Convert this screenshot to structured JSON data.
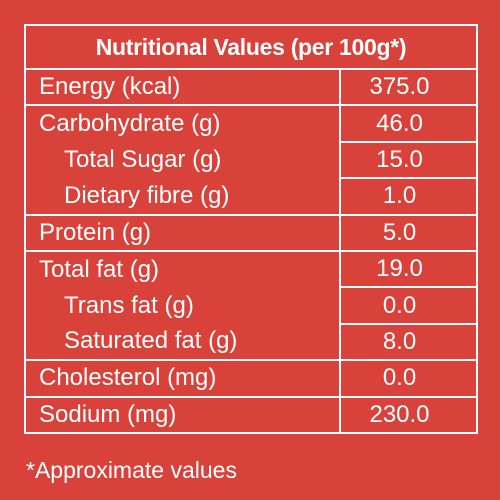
{
  "table": {
    "title": "Nutritional Values (per 100g*)",
    "rows": [
      {
        "label": "Energy (kcal)",
        "value": "375.0",
        "indent": false
      },
      {
        "label": "Carbohydrate (g)",
        "value": "46.0",
        "indent": false
      },
      {
        "label": "Total Sugar (g)",
        "value": "15.0",
        "indent": true
      },
      {
        "label": "Dietary fibre (g)",
        "value": "1.0",
        "indent": true
      },
      {
        "label": "Protein (g)",
        "value": "5.0",
        "indent": false
      },
      {
        "label": "Total fat (g)",
        "value": "19.0",
        "indent": false
      },
      {
        "label": "Trans fat (g)",
        "value": "0.0",
        "indent": true
      },
      {
        "label": "Saturated fat (g)",
        "value": "8.0",
        "indent": true
      },
      {
        "label": "Cholesterol (mg)",
        "value": "0.0",
        "indent": false
      },
      {
        "label": "Sodium (mg)",
        "value": "230.0",
        "indent": false
      }
    ]
  },
  "footnote": "*Approximate values",
  "colors": {
    "background": "#d8423a",
    "text": "#ffffff",
    "border": "#ffffff"
  }
}
